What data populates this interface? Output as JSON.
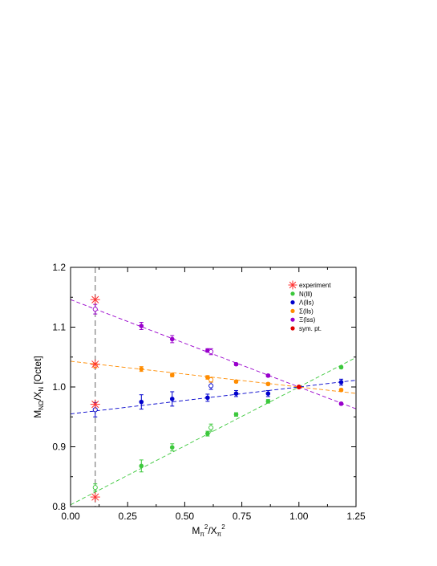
{
  "chart_data": {
    "type": "scatter",
    "xlabel_main": "M",
    "xlabel_sub": "π",
    "xlabel_sup": "2",
    "xlabel_mid": "/X",
    "xlabel_sub2": "π",
    "xlabel_sup2": "2",
    "ylabel_main": "M",
    "ylabel_sub": "NΩ",
    "ylabel_mid": "/X",
    "ylabel_sub2": "N",
    "ylabel_tail": " [Octet]",
    "xlim": [
      0.0,
      1.25
    ],
    "ylim": [
      0.8,
      1.2
    ],
    "xticks": [
      0.0,
      0.25,
      0.5,
      0.75,
      1.0,
      1.25
    ],
    "xtick_labels": [
      "0.00",
      "0.25",
      "0.50",
      "0.75",
      "1.00",
      "1.25"
    ],
    "yticks": [
      0.8,
      0.9,
      1.0,
      1.1,
      1.2
    ],
    "ytick_labels": [
      "0.8",
      "0.9",
      "1.0",
      "1.1",
      "1.2"
    ],
    "vertical_line_x": 0.108,
    "legend_position": "top-right",
    "legend": [
      {
        "label": "experiment",
        "color": "#ff3030",
        "marker": "star"
      },
      {
        "label": "N(lll)",
        "color": "#3cc83c",
        "marker": "dot"
      },
      {
        "label": "Λ(lls)",
        "color": "#0000cc",
        "marker": "dot"
      },
      {
        "label": "Σ(lls)",
        "color": "#ff8c00",
        "marker": "dot"
      },
      {
        "label": "Ξ(lss)",
        "color": "#9900cc",
        "marker": "dot"
      },
      {
        "label": "sym. pt.",
        "color": "#e00000",
        "marker": "dot"
      }
    ],
    "series": [
      {
        "name": "N(lll)",
        "color": "#3cc83c",
        "fit": {
          "a": 0.803,
          "b": 0.197
        },
        "points": [
          {
            "x": 0.31,
            "y": 0.868,
            "err": 0.01,
            "open": false
          },
          {
            "x": 0.445,
            "y": 0.899,
            "err": 0.006,
            "open": false
          },
          {
            "x": 0.6,
            "y": 0.922,
            "err": 0.004,
            "open": false
          },
          {
            "x": 0.725,
            "y": 0.954,
            "err": 0.003,
            "open": false
          },
          {
            "x": 0.865,
            "y": 0.976,
            "err": 0.003,
            "open": false
          },
          {
            "x": 1.185,
            "y": 1.033,
            "err": 0.002,
            "open": false
          },
          {
            "x": 0.108,
            "y": 0.832,
            "err": 0.006,
            "open": true
          },
          {
            "x": 0.615,
            "y": 0.932,
            "err": 0.006,
            "open": true
          }
        ]
      },
      {
        "name": "Λ(lls)",
        "color": "#0000cc",
        "fit": {
          "a": 0.955,
          "b": 0.045
        },
        "points": [
          {
            "x": 0.31,
            "y": 0.975,
            "err": 0.012,
            "open": false
          },
          {
            "x": 0.445,
            "y": 0.98,
            "err": 0.012,
            "open": false
          },
          {
            "x": 0.6,
            "y": 0.982,
            "err": 0.006,
            "open": false
          },
          {
            "x": 0.725,
            "y": 0.989,
            "err": 0.005,
            "open": false
          },
          {
            "x": 0.865,
            "y": 0.989,
            "err": 0.005,
            "open": false
          },
          {
            "x": 1.185,
            "y": 1.008,
            "err": 0.005,
            "open": false
          },
          {
            "x": 0.108,
            "y": 0.962,
            "err": 0.012,
            "open": true
          },
          {
            "x": 0.615,
            "y": 1.002,
            "err": 0.006,
            "open": true
          }
        ]
      },
      {
        "name": "Σ(lls)",
        "color": "#ff8c00",
        "fit": {
          "a": 1.043,
          "b": -0.043
        },
        "points": [
          {
            "x": 0.31,
            "y": 1.03,
            "err": 0.004,
            "open": false
          },
          {
            "x": 0.445,
            "y": 1.02,
            "err": 0.003,
            "open": false
          },
          {
            "x": 0.6,
            "y": 1.016,
            "err": 0.003,
            "open": false
          },
          {
            "x": 0.725,
            "y": 1.009,
            "err": 0.002,
            "open": false
          },
          {
            "x": 0.865,
            "y": 1.005,
            "err": 0.002,
            "open": false
          },
          {
            "x": 1.185,
            "y": 0.995,
            "err": 0.002,
            "open": false
          },
          {
            "x": 0.108,
            "y": 1.036,
            "err": 0.004,
            "open": true
          },
          {
            "x": 0.615,
            "y": 1.012,
            "err": 0.004,
            "open": true
          }
        ]
      },
      {
        "name": "Ξ(lss)",
        "color": "#9900cc",
        "fit": {
          "a": 1.146,
          "b": -0.146
        },
        "points": [
          {
            "x": 0.31,
            "y": 1.102,
            "err": 0.006,
            "open": false
          },
          {
            "x": 0.445,
            "y": 1.08,
            "err": 0.006,
            "open": false
          },
          {
            "x": 0.6,
            "y": 1.061,
            "err": 0.003,
            "open": false
          },
          {
            "x": 0.725,
            "y": 1.038,
            "err": 0.002,
            "open": false
          },
          {
            "x": 0.865,
            "y": 1.019,
            "err": 0.002,
            "open": false
          },
          {
            "x": 1.185,
            "y": 0.972,
            "err": 0.002,
            "open": false
          },
          {
            "x": 0.108,
            "y": 1.13,
            "err": 0.008,
            "open": true
          },
          {
            "x": 0.615,
            "y": 1.059,
            "err": 0.005,
            "open": true
          }
        ]
      }
    ],
    "sym_point": {
      "x": 1.0,
      "y": 1.0,
      "color": "#e00000"
    },
    "experiment": {
      "color": "#ff3030",
      "points": [
        {
          "x": 0.108,
          "y": 0.816
        },
        {
          "x": 0.108,
          "y": 0.971
        },
        {
          "x": 0.108,
          "y": 1.038
        },
        {
          "x": 0.108,
          "y": 1.146
        }
      ]
    }
  }
}
